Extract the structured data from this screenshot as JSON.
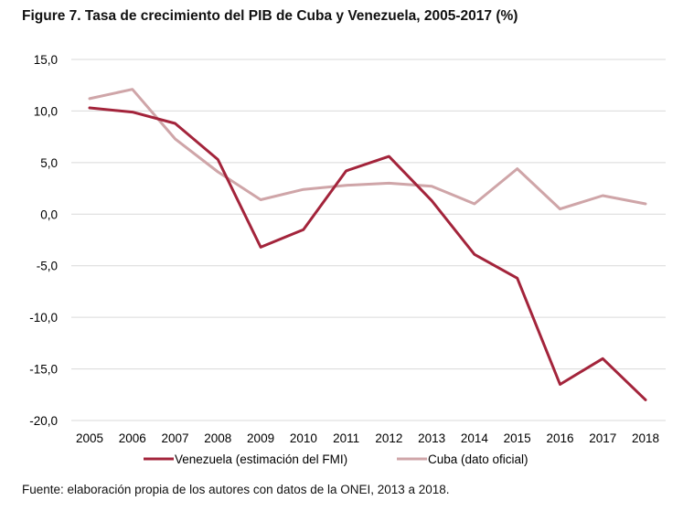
{
  "figure_title": "Figure 7. Tasa de crecimiento del PIB de Cuba y Venezuela, 2005-2017 (%)",
  "source": "Fuente: elaboración propia de los autores con datos de la ONEI, 2013 a 2018.",
  "chart_data": {
    "type": "line",
    "title": "Figure 7. Tasa de crecimiento del PIB de Cuba y Venezuela, 2005-2017 (%)",
    "xlabel": "",
    "ylabel": "",
    "categories": [
      "2005",
      "2006",
      "2007",
      "2008",
      "2009",
      "2010",
      "2011",
      "2012",
      "2013",
      "2014",
      "2015",
      "2016",
      "2017",
      "2018"
    ],
    "ylim": [
      -20,
      15
    ],
    "yticks": [
      15,
      10,
      5,
      0,
      -5,
      -10,
      -15,
      -20
    ],
    "ytick_labels": [
      "15,0",
      "10,0",
      "5,0",
      "0,0",
      "-5,0",
      "-10,0",
      "-15,0",
      "-20,0"
    ],
    "grid": true,
    "legend_position": "bottom",
    "series": [
      {
        "name": "Venezuela (estimación del FMI)",
        "color": "#A3243B",
        "values": [
          10.3,
          9.9,
          8.8,
          5.3,
          -3.2,
          -1.5,
          4.2,
          5.6,
          1.3,
          -3.9,
          -6.2,
          -16.5,
          -14.0,
          -18.0
        ]
      },
      {
        "name": "Cuba (dato oficial)",
        "color": "#CFA5A8",
        "values": [
          11.2,
          12.1,
          7.3,
          4.1,
          1.4,
          2.4,
          2.8,
          3.0,
          2.7,
          1.0,
          4.4,
          0.5,
          1.8,
          1.0
        ]
      }
    ]
  }
}
